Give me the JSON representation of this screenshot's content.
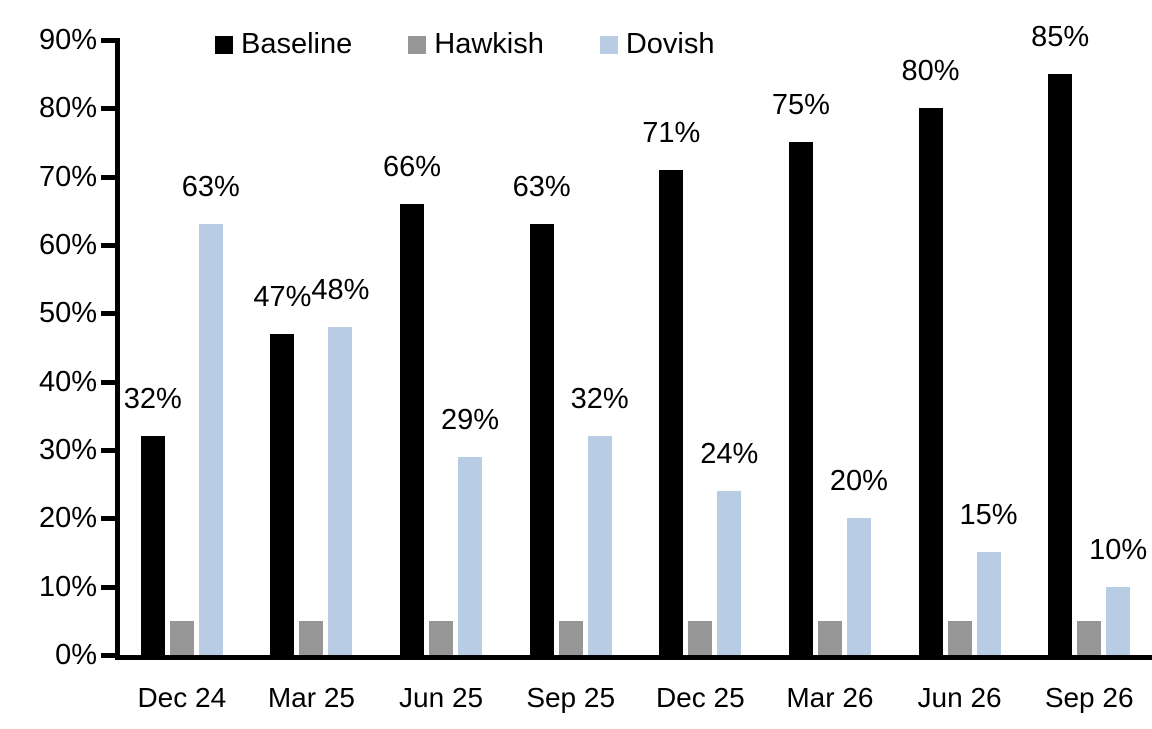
{
  "chart_data": {
    "type": "bar",
    "title": "",
    "categories": [
      "Dec 24",
      "Mar 25",
      "Jun 25",
      "Sep 25",
      "Dec 25",
      "Mar 26",
      "Jun 26",
      "Sep 26"
    ],
    "series": [
      {
        "name": "Baseline",
        "color": "#000000",
        "values": [
          32,
          47,
          66,
          63,
          71,
          75,
          80,
          85
        ],
        "data_labels": [
          "32%",
          "47%",
          "66%",
          "63%",
          "71%",
          "75%",
          "80%",
          "85%"
        ]
      },
      {
        "name": "Hawkish",
        "color": "#969696",
        "values": [
          5,
          5,
          5,
          5,
          5,
          5,
          5,
          5
        ],
        "data_labels": null
      },
      {
        "name": "Dovish",
        "color": "#B8CCE4",
        "values": [
          63,
          48,
          29,
          32,
          24,
          20,
          15,
          10
        ],
        "data_labels": [
          "63%",
          "48%",
          "29%",
          "32%",
          "24%",
          "20%",
          "15%",
          "10%"
        ]
      }
    ],
    "ylim": [
      0,
      90
    ],
    "ytick_step": 10,
    "yticks": [
      0,
      10,
      20,
      30,
      40,
      50,
      60,
      70,
      80,
      90
    ],
    "ytick_labels": [
      "0%",
      "10%",
      "20%",
      "30%",
      "40%",
      "50%",
      "60%",
      "70%",
      "80%",
      "90%"
    ],
    "grid": false,
    "legend_position": "top",
    "axis_color": "#000000",
    "background_color": "#FFFFFF"
  }
}
